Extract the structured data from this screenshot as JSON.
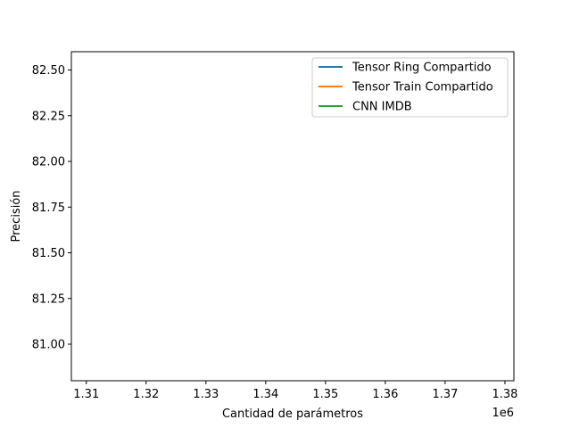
{
  "chart_data": {
    "type": "line",
    "title": "",
    "xlabel": "Cantidad de parámetros",
    "ylabel": "Precisión",
    "x_offset_label": "1e6",
    "xlim": [
      1.3075,
      1.3815
    ],
    "ylim": [
      80.8,
      82.6
    ],
    "x_ticks": [
      1.31,
      1.32,
      1.33,
      1.34,
      1.35,
      1.36,
      1.37,
      1.38
    ],
    "x_tick_labels": [
      "1.31",
      "1.32",
      "1.33",
      "1.34",
      "1.35",
      "1.36",
      "1.37",
      "1.38"
    ],
    "y_ticks": [
      81.0,
      81.25,
      81.5,
      81.75,
      82.0,
      82.25,
      82.5
    ],
    "y_tick_labels": [
      "81.00",
      "81.25",
      "81.50",
      "81.75",
      "82.00",
      "82.25",
      "82.50"
    ],
    "grid": false,
    "legend_position": "upper right",
    "series": [
      {
        "name": "Tensor Ring Compartido",
        "color": "#1f77b4",
        "x": [],
        "y": []
      },
      {
        "name": "Tensor Train Compartido",
        "color": "#ff7f0e",
        "x": [],
        "y": []
      },
      {
        "name": "CNN IMDB",
        "color": "#2ca02c",
        "x": [],
        "y": []
      }
    ]
  }
}
